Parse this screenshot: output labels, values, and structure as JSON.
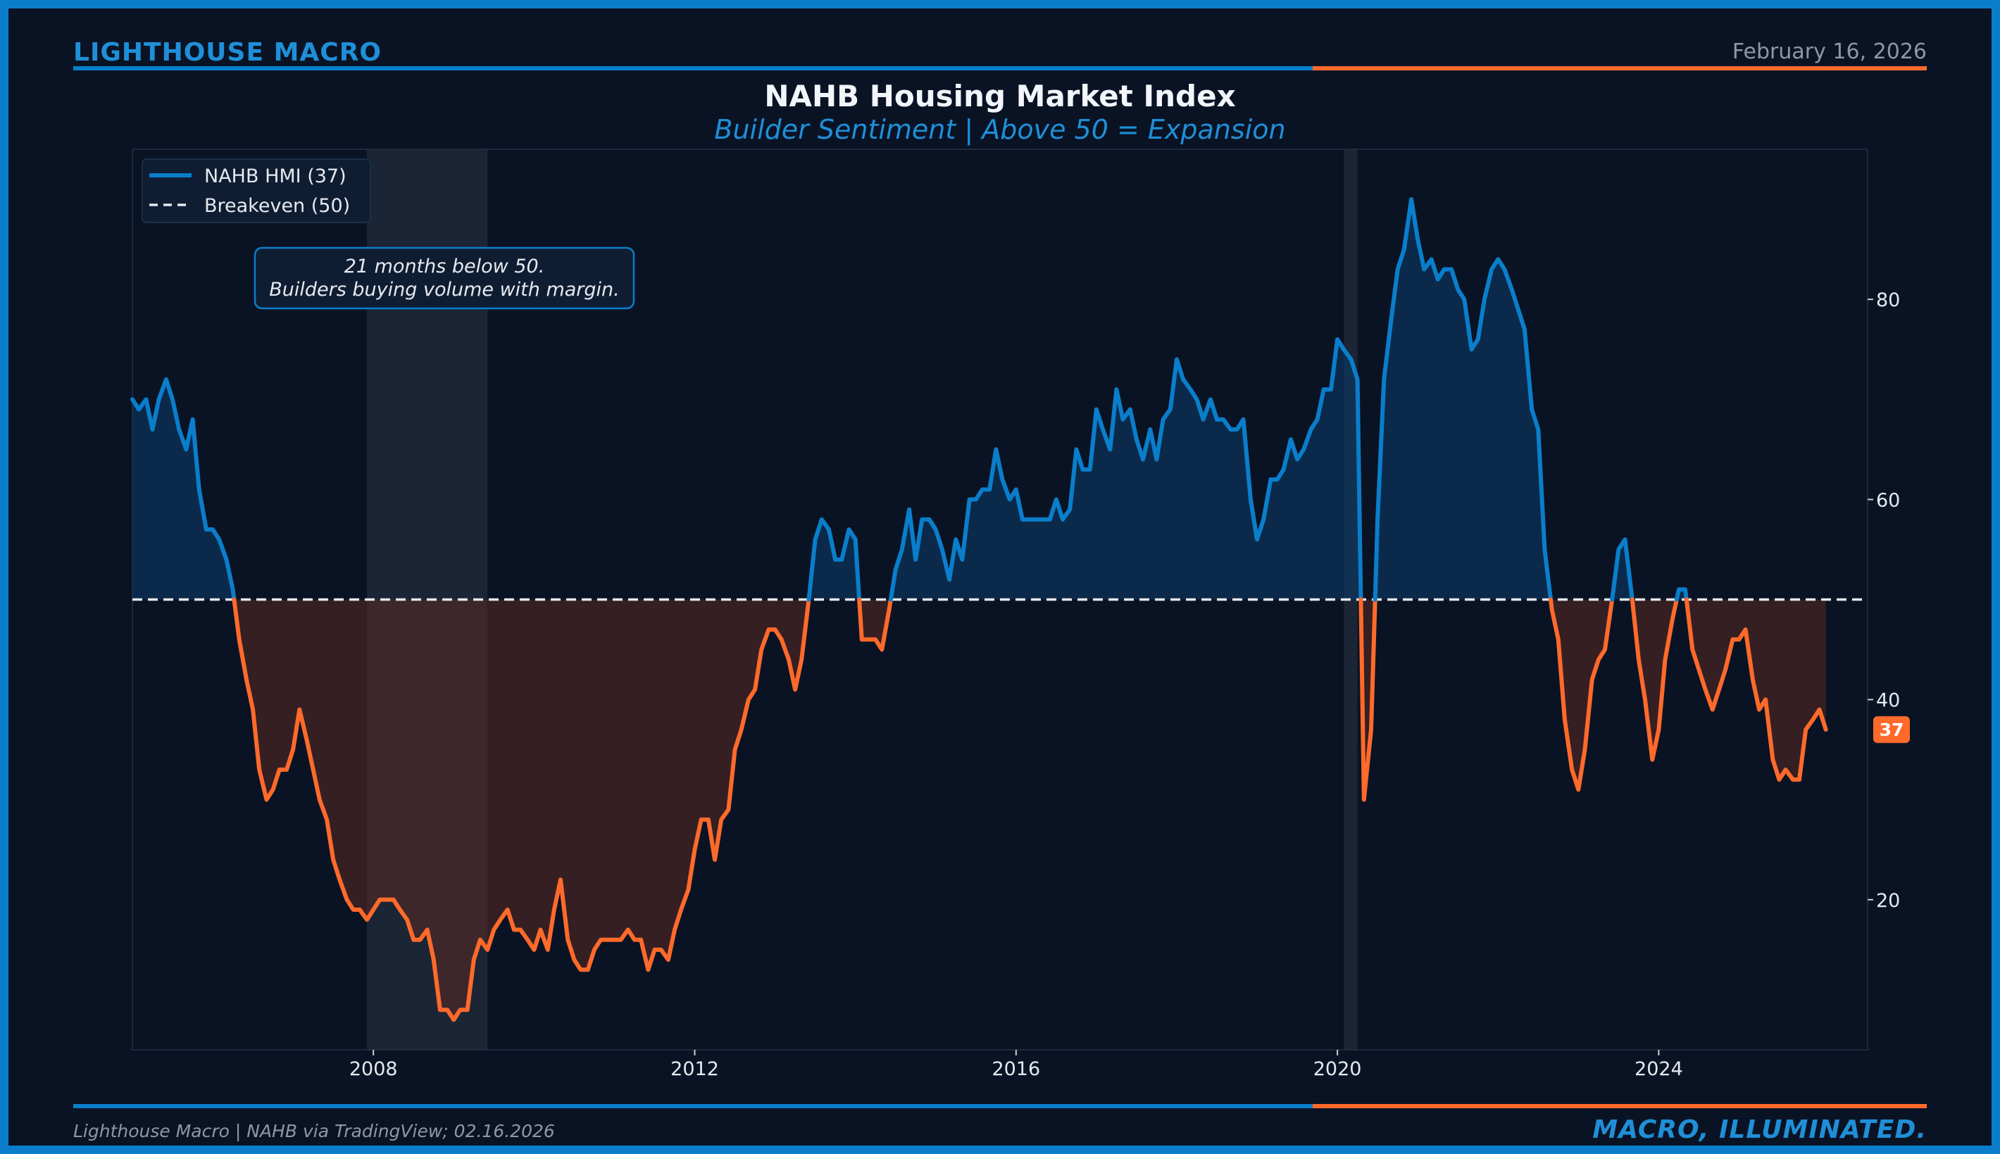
{
  "header": {
    "brand": "LIGHTHOUSE MACRO",
    "date": "February 16, 2026"
  },
  "footer": {
    "source": "Lighthouse Macro | NAHB via TradingView; 02.16.2026",
    "tagline": "MACRO, ILLUMINATED."
  },
  "colors": {
    "above": "#0a7ecb",
    "below": "#ff6a2b",
    "breakeven": "#e6e9ef",
    "recession_shade": "#2a3543"
  },
  "chart_data": {
    "type": "line",
    "title": "NAHB Housing Market Index",
    "subtitle": "Builder Sentiment | Above 50 = Expansion",
    "xlabel": "",
    "ylabel": "",
    "xlim": [
      2005.0,
      2026.6
    ],
    "ylim": [
      5,
      95
    ],
    "x_ticks": [
      2008,
      2012,
      2016,
      2020,
      2024
    ],
    "x_tick_labels": [
      "2008",
      "2012",
      "2016",
      "2020",
      "2024"
    ],
    "y_ticks": [
      20,
      40,
      60,
      80
    ],
    "y_tick_labels": [
      "20",
      "40",
      "60",
      "80"
    ],
    "y_axis_side": "right",
    "legend": {
      "position": "top-left",
      "entries": [
        "NAHB HMI (37)",
        "Breakeven (50)"
      ]
    },
    "annotation": {
      "lines": [
        "21 months below 50.",
        "Builders buying volume with margin."
      ]
    },
    "last_value_label": "37",
    "breakeven": 50,
    "recessions": [
      [
        2007.92,
        2009.42
      ],
      [
        2020.08,
        2020.25
      ]
    ],
    "series": [
      {
        "name": "NAHB HMI",
        "points": [
          [
            2005.0,
            70
          ],
          [
            2005.08,
            69
          ],
          [
            2005.17,
            70
          ],
          [
            2005.25,
            67
          ],
          [
            2005.33,
            70
          ],
          [
            2005.42,
            72
          ],
          [
            2005.5,
            70
          ],
          [
            2005.58,
            67
          ],
          [
            2005.67,
            65
          ],
          [
            2005.75,
            68
          ],
          [
            2005.83,
            61
          ],
          [
            2005.92,
            57
          ],
          [
            2006.0,
            57
          ],
          [
            2006.08,
            56
          ],
          [
            2006.17,
            54
          ],
          [
            2006.25,
            51
          ],
          [
            2006.33,
            46
          ],
          [
            2006.42,
            42
          ],
          [
            2006.5,
            39
          ],
          [
            2006.58,
            33
          ],
          [
            2006.67,
            30
          ],
          [
            2006.75,
            31
          ],
          [
            2006.83,
            33
          ],
          [
            2006.92,
            33
          ],
          [
            2007.0,
            35
          ],
          [
            2007.08,
            39
          ],
          [
            2007.17,
            36
          ],
          [
            2007.25,
            33
          ],
          [
            2007.33,
            30
          ],
          [
            2007.42,
            28
          ],
          [
            2007.5,
            24
          ],
          [
            2007.58,
            22
          ],
          [
            2007.67,
            20
          ],
          [
            2007.75,
            19
          ],
          [
            2007.83,
            19
          ],
          [
            2007.92,
            18
          ],
          [
            2008.0,
            19
          ],
          [
            2008.08,
            20
          ],
          [
            2008.17,
            20
          ],
          [
            2008.25,
            20
          ],
          [
            2008.33,
            19
          ],
          [
            2008.42,
            18
          ],
          [
            2008.5,
            16
          ],
          [
            2008.58,
            16
          ],
          [
            2008.67,
            17
          ],
          [
            2008.75,
            14
          ],
          [
            2008.83,
            9
          ],
          [
            2008.92,
            9
          ],
          [
            2009.0,
            8
          ],
          [
            2009.08,
            9
          ],
          [
            2009.17,
            9
          ],
          [
            2009.25,
            14
          ],
          [
            2009.33,
            16
          ],
          [
            2009.42,
            15
          ],
          [
            2009.5,
            17
          ],
          [
            2009.58,
            18
          ],
          [
            2009.67,
            19
          ],
          [
            2009.75,
            17
          ],
          [
            2009.83,
            17
          ],
          [
            2009.92,
            16
          ],
          [
            2010.0,
            15
          ],
          [
            2010.08,
            17
          ],
          [
            2010.17,
            15
          ],
          [
            2010.25,
            19
          ],
          [
            2010.33,
            22
          ],
          [
            2010.42,
            16
          ],
          [
            2010.5,
            14
          ],
          [
            2010.58,
            13
          ],
          [
            2010.67,
            13
          ],
          [
            2010.75,
            15
          ],
          [
            2010.83,
            16
          ],
          [
            2010.92,
            16
          ],
          [
            2011.0,
            16
          ],
          [
            2011.08,
            16
          ],
          [
            2011.17,
            17
          ],
          [
            2011.25,
            16
          ],
          [
            2011.33,
            16
          ],
          [
            2011.42,
            13
          ],
          [
            2011.5,
            15
          ],
          [
            2011.58,
            15
          ],
          [
            2011.67,
            14
          ],
          [
            2011.75,
            17
          ],
          [
            2011.83,
            19
          ],
          [
            2011.92,
            21
          ],
          [
            2012.0,
            25
          ],
          [
            2012.08,
            28
          ],
          [
            2012.17,
            28
          ],
          [
            2012.25,
            24
          ],
          [
            2012.33,
            28
          ],
          [
            2012.42,
            29
          ],
          [
            2012.5,
            35
          ],
          [
            2012.58,
            37
          ],
          [
            2012.67,
            40
          ],
          [
            2012.75,
            41
          ],
          [
            2012.83,
            45
          ],
          [
            2012.92,
            47
          ],
          [
            2013.0,
            47
          ],
          [
            2013.08,
            46
          ],
          [
            2013.17,
            44
          ],
          [
            2013.25,
            41
          ],
          [
            2013.33,
            44
          ],
          [
            2013.42,
            50
          ],
          [
            2013.5,
            56
          ],
          [
            2013.58,
            58
          ],
          [
            2013.67,
            57
          ],
          [
            2013.75,
            54
          ],
          [
            2013.83,
            54
          ],
          [
            2013.92,
            57
          ],
          [
            2014.0,
            56
          ],
          [
            2014.08,
            46
          ],
          [
            2014.17,
            46
          ],
          [
            2014.25,
            46
          ],
          [
            2014.33,
            45
          ],
          [
            2014.42,
            49
          ],
          [
            2014.5,
            53
          ],
          [
            2014.58,
            55
          ],
          [
            2014.67,
            59
          ],
          [
            2014.75,
            54
          ],
          [
            2014.83,
            58
          ],
          [
            2014.92,
            58
          ],
          [
            2015.0,
            57
          ],
          [
            2015.08,
            55
          ],
          [
            2015.17,
            52
          ],
          [
            2015.25,
            56
          ],
          [
            2015.33,
            54
          ],
          [
            2015.42,
            60
          ],
          [
            2015.5,
            60
          ],
          [
            2015.58,
            61
          ],
          [
            2015.67,
            61
          ],
          [
            2015.75,
            65
          ],
          [
            2015.83,
            62
          ],
          [
            2015.92,
            60
          ],
          [
            2016.0,
            61
          ],
          [
            2016.08,
            58
          ],
          [
            2016.17,
            58
          ],
          [
            2016.25,
            58
          ],
          [
            2016.33,
            58
          ],
          [
            2016.42,
            58
          ],
          [
            2016.5,
            60
          ],
          [
            2016.58,
            58
          ],
          [
            2016.67,
            59
          ],
          [
            2016.75,
            65
          ],
          [
            2016.83,
            63
          ],
          [
            2016.92,
            63
          ],
          [
            2017.0,
            69
          ],
          [
            2017.08,
            67
          ],
          [
            2017.17,
            65
          ],
          [
            2017.25,
            71
          ],
          [
            2017.33,
            68
          ],
          [
            2017.42,
            69
          ],
          [
            2017.5,
            66
          ],
          [
            2017.58,
            64
          ],
          [
            2017.67,
            67
          ],
          [
            2017.75,
            64
          ],
          [
            2017.83,
            68
          ],
          [
            2017.92,
            69
          ],
          [
            2018.0,
            74
          ],
          [
            2018.08,
            72
          ],
          [
            2018.17,
            71
          ],
          [
            2018.25,
            70
          ],
          [
            2018.33,
            68
          ],
          [
            2018.42,
            70
          ],
          [
            2018.5,
            68
          ],
          [
            2018.58,
            68
          ],
          [
            2018.67,
            67
          ],
          [
            2018.75,
            67
          ],
          [
            2018.83,
            68
          ],
          [
            2018.92,
            60
          ],
          [
            2019.0,
            56
          ],
          [
            2019.08,
            58
          ],
          [
            2019.17,
            62
          ],
          [
            2019.25,
            62
          ],
          [
            2019.33,
            63
          ],
          [
            2019.42,
            66
          ],
          [
            2019.5,
            64
          ],
          [
            2019.58,
            65
          ],
          [
            2019.67,
            67
          ],
          [
            2019.75,
            68
          ],
          [
            2019.83,
            71
          ],
          [
            2019.92,
            71
          ],
          [
            2020.0,
            76
          ],
          [
            2020.08,
            75
          ],
          [
            2020.17,
            74
          ],
          [
            2020.25,
            72
          ],
          [
            2020.33,
            30
          ],
          [
            2020.42,
            37
          ],
          [
            2020.5,
            58
          ],
          [
            2020.58,
            72
          ],
          [
            2020.67,
            78
          ],
          [
            2020.75,
            83
          ],
          [
            2020.83,
            85
          ],
          [
            2020.92,
            90
          ],
          [
            2021.0,
            86
          ],
          [
            2021.08,
            83
          ],
          [
            2021.17,
            84
          ],
          [
            2021.25,
            82
          ],
          [
            2021.33,
            83
          ],
          [
            2021.42,
            83
          ],
          [
            2021.5,
            81
          ],
          [
            2021.58,
            80
          ],
          [
            2021.67,
            75
          ],
          [
            2021.75,
            76
          ],
          [
            2021.83,
            80
          ],
          [
            2021.92,
            83
          ],
          [
            2022.0,
            84
          ],
          [
            2022.08,
            83
          ],
          [
            2022.17,
            81
          ],
          [
            2022.25,
            79
          ],
          [
            2022.33,
            77
          ],
          [
            2022.42,
            69
          ],
          [
            2022.5,
            67
          ],
          [
            2022.58,
            55
          ],
          [
            2022.67,
            49
          ],
          [
            2022.75,
            46
          ],
          [
            2022.83,
            38
          ],
          [
            2022.92,
            33
          ],
          [
            2023.0,
            31
          ],
          [
            2023.08,
            35
          ],
          [
            2023.17,
            42
          ],
          [
            2023.25,
            44
          ],
          [
            2023.33,
            45
          ],
          [
            2023.42,
            50
          ],
          [
            2023.5,
            55
          ],
          [
            2023.58,
            56
          ],
          [
            2023.67,
            50
          ],
          [
            2023.75,
            44
          ],
          [
            2023.83,
            40
          ],
          [
            2023.92,
            34
          ],
          [
            2024.0,
            37
          ],
          [
            2024.08,
            44
          ],
          [
            2024.17,
            48
          ],
          [
            2024.25,
            51
          ],
          [
            2024.33,
            51
          ],
          [
            2024.42,
            45
          ],
          [
            2024.5,
            43
          ],
          [
            2024.58,
            41
          ],
          [
            2024.67,
            39
          ],
          [
            2024.75,
            41
          ],
          [
            2024.83,
            43
          ],
          [
            2024.92,
            46
          ],
          [
            2025.0,
            46
          ],
          [
            2025.08,
            47
          ],
          [
            2025.17,
            42
          ],
          [
            2025.25,
            39
          ],
          [
            2025.33,
            40
          ],
          [
            2025.42,
            34
          ],
          [
            2025.5,
            32
          ],
          [
            2025.58,
            33
          ],
          [
            2025.67,
            32
          ],
          [
            2025.75,
            32
          ],
          [
            2025.83,
            37
          ],
          [
            2025.92,
            38
          ],
          [
            2026.0,
            39
          ],
          [
            2026.08,
            37
          ]
        ]
      },
      {
        "name": "Breakeven",
        "value": 50
      }
    ]
  }
}
